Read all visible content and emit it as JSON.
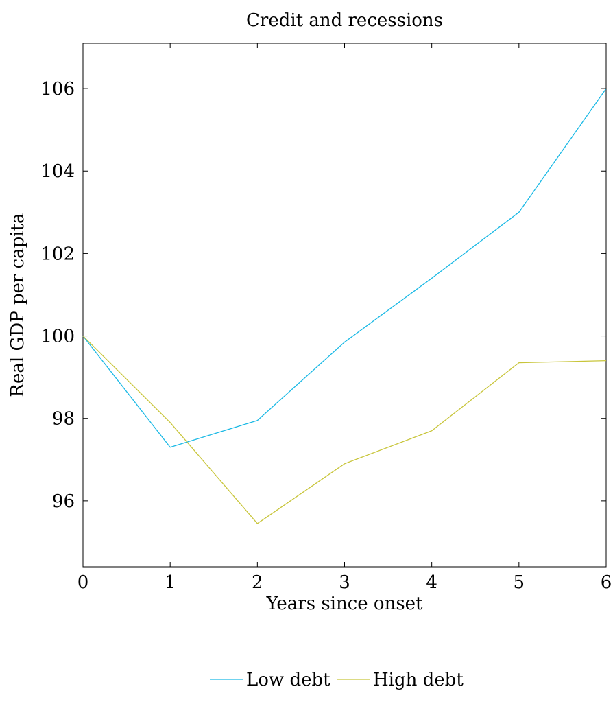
{
  "chart_data": {
    "type": "line",
    "title": "Credit and recessions",
    "xlabel": "Years since onset",
    "ylabel": "Real GDP per capita",
    "x": [
      0,
      1,
      2,
      3,
      4,
      5,
      6
    ],
    "xlim": [
      0,
      6
    ],
    "ylim": [
      94.4,
      107.1
    ],
    "xticks": [
      0,
      1,
      2,
      3,
      4,
      5,
      6
    ],
    "yticks": [
      96,
      98,
      100,
      102,
      104,
      106
    ],
    "grid": false,
    "legend_position": "bottom",
    "series": [
      {
        "name": "Low debt",
        "color": "#1ab9e5",
        "values": [
          100,
          97.3,
          97.95,
          99.85,
          101.4,
          103.0,
          106.0
        ]
      },
      {
        "name": "High debt",
        "color": "#c8c53a",
        "values": [
          100,
          97.9,
          95.45,
          96.9,
          97.7,
          99.35,
          99.4
        ]
      }
    ]
  }
}
